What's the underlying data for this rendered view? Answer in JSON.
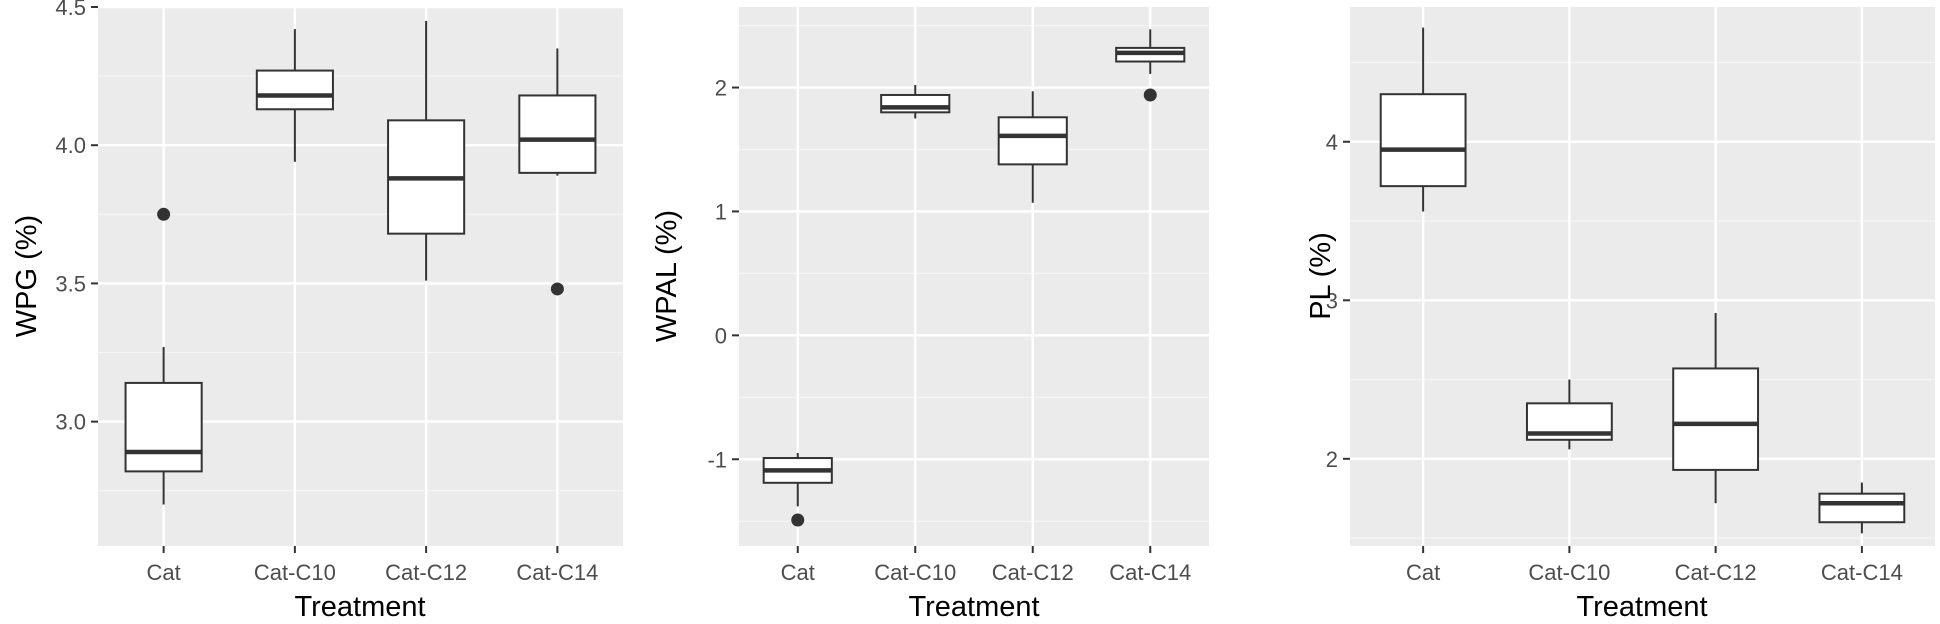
{
  "chart_data": [
    {
      "type": "box",
      "xlabel": "Treatment",
      "ylabel": "WPG (%)",
      "categories": [
        "Cat",
        "Cat-C10",
        "Cat-C12",
        "Cat-C14"
      ],
      "ylim": [
        2.55,
        4.5
      ],
      "yticks": [
        3.0,
        3.5,
        4.0,
        4.5
      ],
      "ytick_labels": [
        "3.0",
        "3.5",
        "4.0",
        "4.5"
      ],
      "grid": true,
      "boxes": [
        {
          "category": "Cat",
          "whisker_low": 2.7,
          "q1": 2.82,
          "median": 2.89,
          "q3": 3.14,
          "whisker_high": 3.27,
          "outliers": [
            3.75
          ]
        },
        {
          "category": "Cat-C10",
          "whisker_low": 3.94,
          "q1": 4.13,
          "median": 4.18,
          "q3": 4.27,
          "whisker_high": 4.42,
          "outliers": []
        },
        {
          "category": "Cat-C12",
          "whisker_low": 3.51,
          "q1": 3.68,
          "median": 3.88,
          "q3": 4.09,
          "whisker_high": 4.45,
          "outliers": []
        },
        {
          "category": "Cat-C14",
          "whisker_low": 3.89,
          "q1": 3.9,
          "median": 4.02,
          "q3": 4.18,
          "whisker_high": 4.35,
          "outliers": [
            3.48
          ]
        }
      ]
    },
    {
      "type": "box",
      "xlabel": "Treatment",
      "ylabel": "WPAL (%)",
      "categories": [
        "Cat",
        "Cat-C10",
        "Cat-C12",
        "Cat-C14"
      ],
      "ylim": [
        -1.7,
        2.65
      ],
      "yticks": [
        -1,
        0,
        1,
        2
      ],
      "ytick_labels": [
        "-1",
        "0",
        "1",
        "2"
      ],
      "grid": true,
      "boxes": [
        {
          "category": "Cat",
          "whisker_low": -1.38,
          "q1": -1.19,
          "median": -1.09,
          "q3": -0.99,
          "whisker_high": -0.95,
          "outliers": [
            -1.49
          ]
        },
        {
          "category": "Cat-C10",
          "whisker_low": 1.75,
          "q1": 1.8,
          "median": 1.84,
          "q3": 1.94,
          "whisker_high": 2.02,
          "outliers": []
        },
        {
          "category": "Cat-C12",
          "whisker_low": 1.07,
          "q1": 1.38,
          "median": 1.61,
          "q3": 1.76,
          "whisker_high": 1.97,
          "outliers": []
        },
        {
          "category": "Cat-C14",
          "whisker_low": 2.11,
          "q1": 2.21,
          "median": 2.28,
          "q3": 2.32,
          "whisker_high": 2.47,
          "outliers": [
            1.94
          ]
        }
      ]
    },
    {
      "type": "box",
      "xlabel": "Treatment",
      "ylabel": "PL (%)",
      "categories": [
        "Cat",
        "Cat-C10",
        "Cat-C12",
        "Cat-C14"
      ],
      "ylim": [
        1.45,
        4.85
      ],
      "yticks": [
        2,
        3,
        4
      ],
      "ytick_labels": [
        "2",
        "3",
        "4"
      ],
      "grid": true,
      "boxes": [
        {
          "category": "Cat",
          "whisker_low": 3.56,
          "q1": 3.72,
          "median": 3.95,
          "q3": 4.3,
          "whisker_high": 4.72,
          "outliers": []
        },
        {
          "category": "Cat-C10",
          "whisker_low": 2.06,
          "q1": 2.12,
          "median": 2.16,
          "q3": 2.35,
          "whisker_high": 2.5,
          "outliers": []
        },
        {
          "category": "Cat-C12",
          "whisker_low": 1.72,
          "q1": 1.93,
          "median": 2.22,
          "q3": 2.57,
          "whisker_high": 2.92,
          "outliers": []
        },
        {
          "category": "Cat-C14",
          "whisker_low": 1.53,
          "q1": 1.6,
          "median": 1.72,
          "q3": 1.78,
          "whisker_high": 1.85,
          "outliers": []
        }
      ]
    }
  ]
}
